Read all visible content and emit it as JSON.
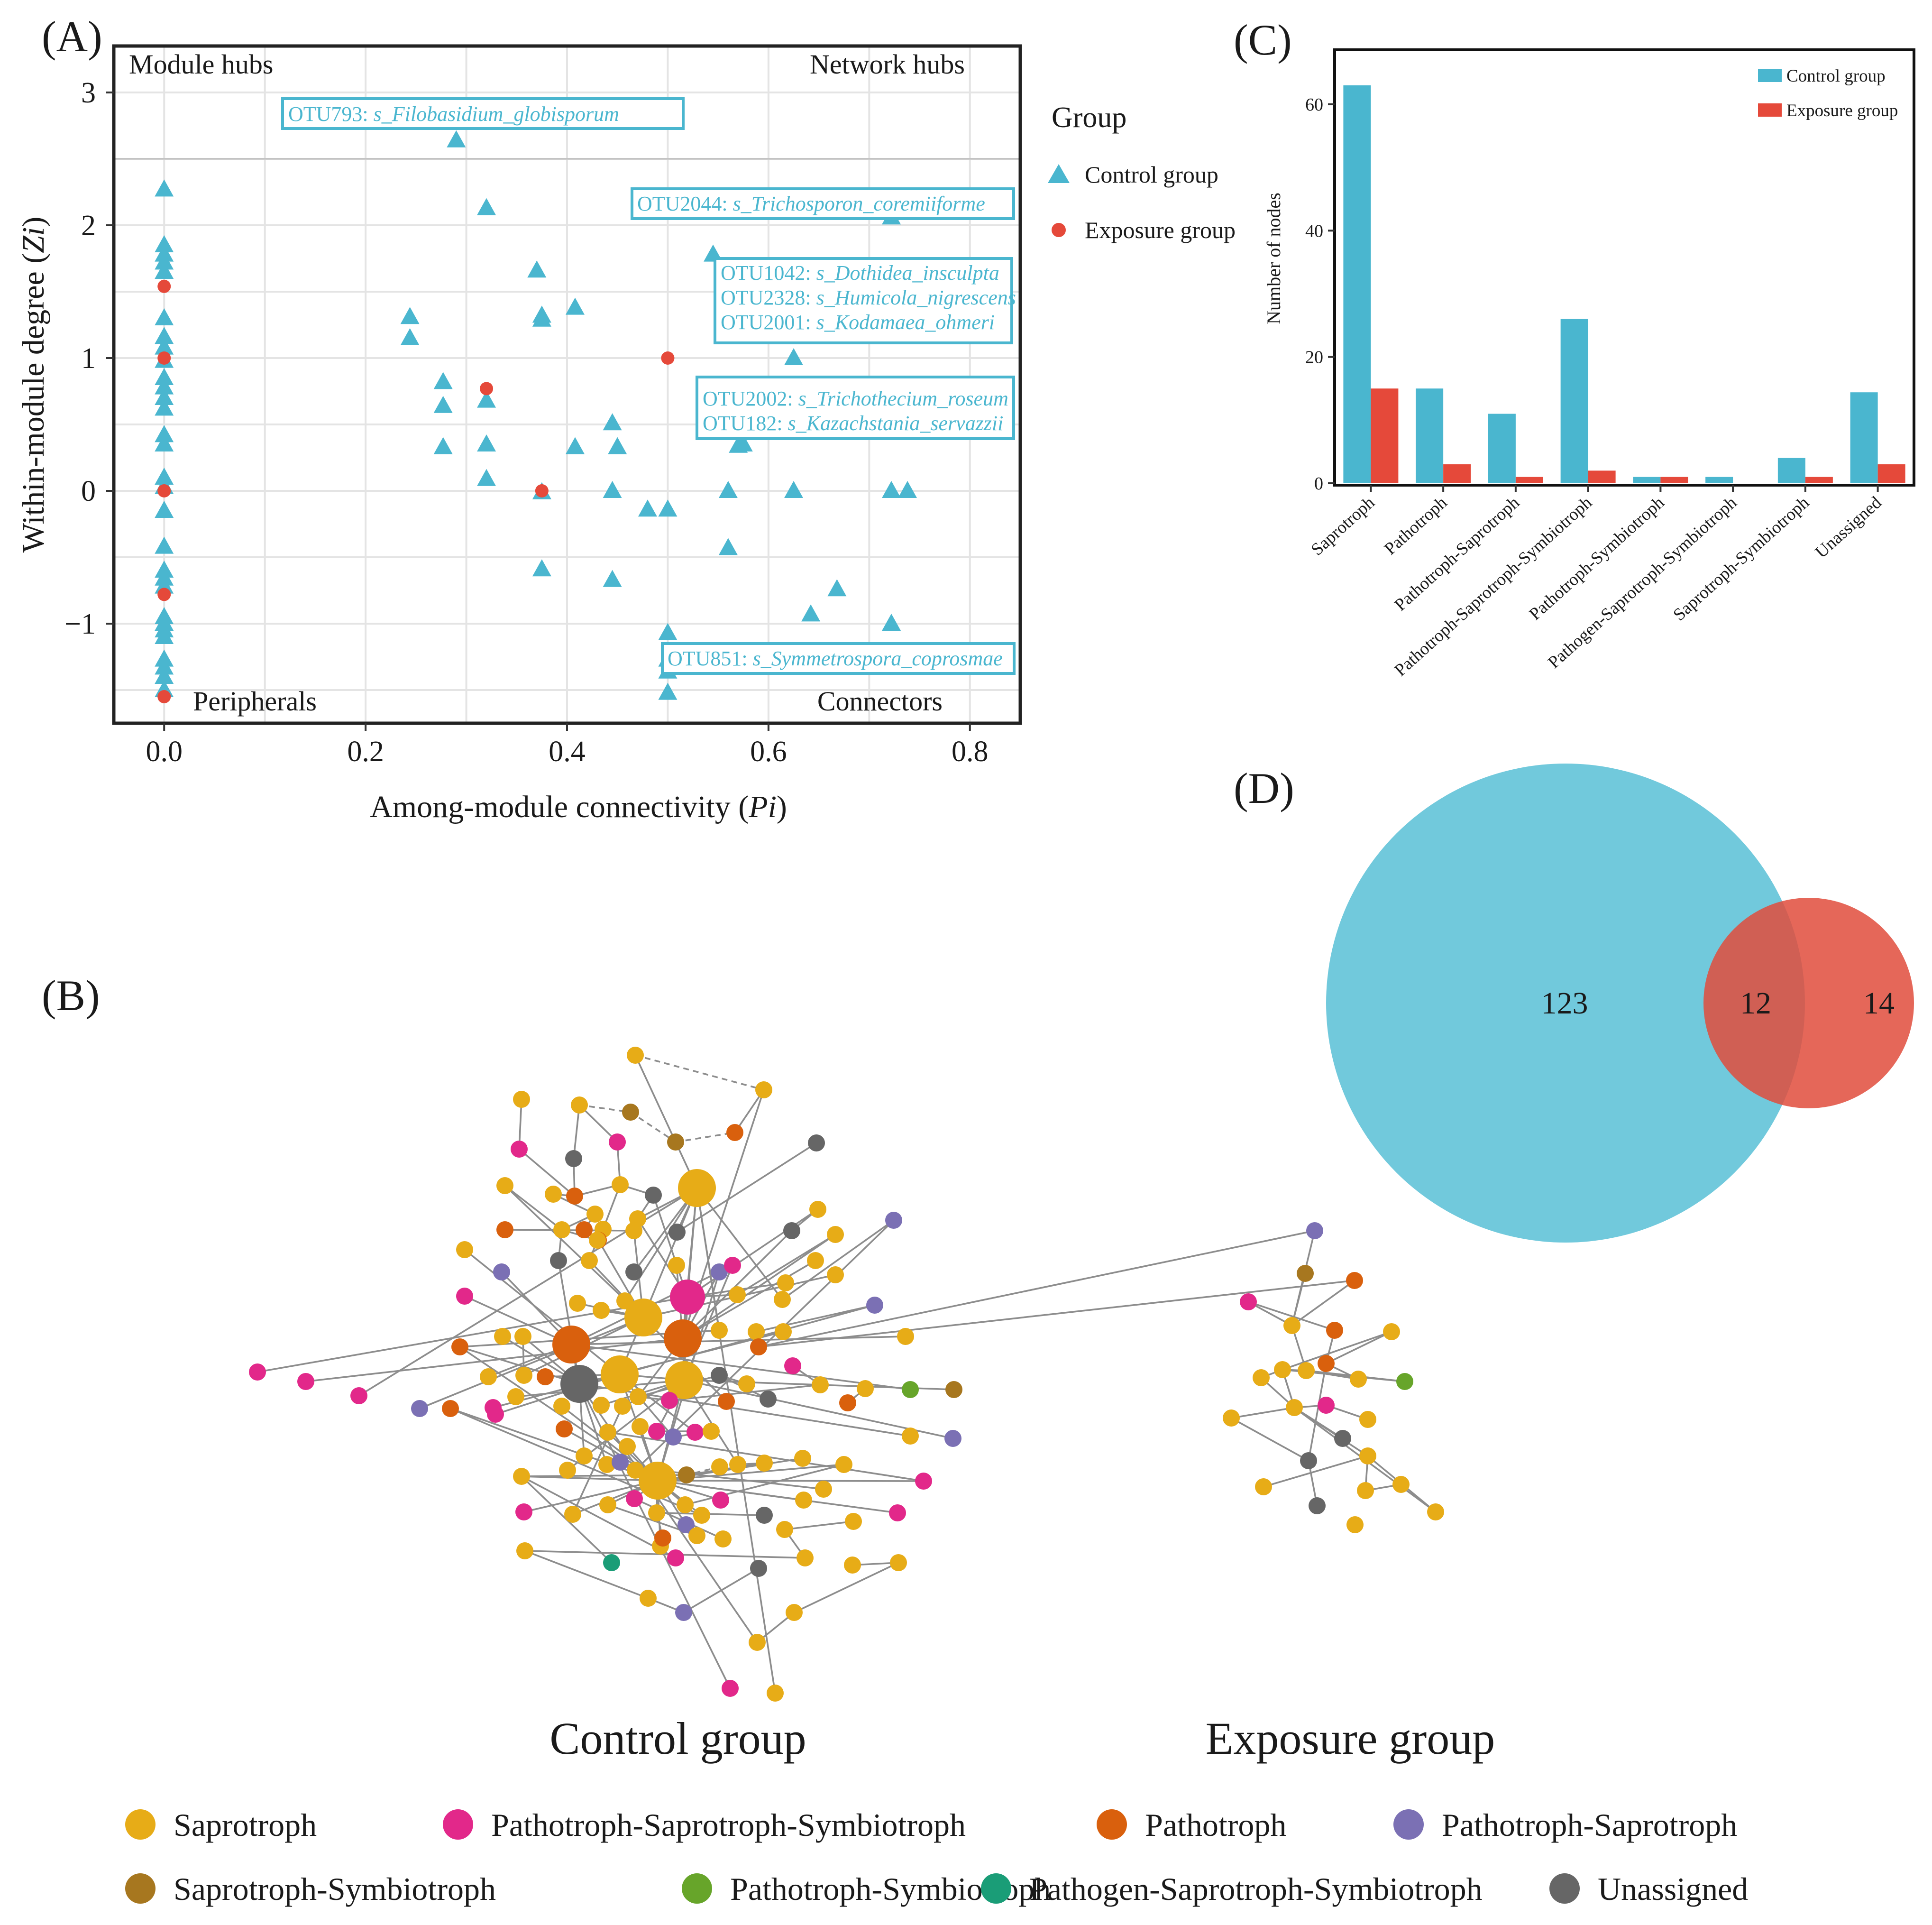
{
  "colors": {
    "control": "#4ab6cf",
    "exposure": "#e5493a",
    "Saprotroph": "#e7ac17",
    "Pathotroph-Saprotroph-Symbiotroph": "#e2288a",
    "Pathotroph": "#d9600d",
    "Pathotroph-Saprotroph": "#7b70b4",
    "Saprotroph-Symbiotroph": "#a7771f",
    "Pathotroph-Symbiotroph": "#67a52a",
    "Pathogen-Saprotroph-Symbiotroph": "#1a9d77",
    "Unassigned": "#666666"
  },
  "panels": {
    "a": "(A)",
    "b": "(B)",
    "c": "(C)",
    "d": "(D)"
  },
  "chart_data": [
    {
      "id": "zipi",
      "type": "scatter",
      "xlabel_main": "Among-module connectivity (",
      "xlabel_ital": "Pi",
      "xlabel_end": ")",
      "ylabel_main": "Within-module degree (",
      "ylabel_ital": "Zi",
      "ylabel_end": ")",
      "xlim": [
        -0.05,
        0.85
      ],
      "ylim": [
        -1.75,
        3.35
      ],
      "xticks": [
        0.0,
        0.2,
        0.4,
        0.6,
        0.8
      ],
      "xtick_labels": [
        "0.0",
        "0.2",
        "0.4",
        "0.6",
        "0.8"
      ],
      "yticks": [
        -1,
        0,
        1,
        2,
        3
      ],
      "ytick_labels": [
        "−1",
        "0",
        "1",
        "2",
        "3"
      ],
      "zi_threshold": 2.5,
      "pi_threshold": 0.62,
      "quadrants": {
        "module_hubs": "Module hubs",
        "network_hubs": "Network hubs",
        "peripherals": "Peripherals",
        "connectors": "Connectors"
      },
      "legend_title": "Group",
      "series": [
        {
          "name": "Control group",
          "marker": "triangle",
          "points": [
            [
              0,
              2.27
            ],
            [
              0,
              1.85
            ],
            [
              0,
              1.78
            ],
            [
              0,
              1.72
            ],
            [
              0,
              1.65
            ],
            [
              0,
              1.3
            ],
            [
              0,
              1.16
            ],
            [
              0,
              1.08
            ],
            [
              0,
              0.98
            ],
            [
              0,
              0.85
            ],
            [
              0,
              0.78
            ],
            [
              0,
              0.7
            ],
            [
              0,
              0.62
            ],
            [
              0,
              0.42
            ],
            [
              0,
              0.35
            ],
            [
              0,
              0.1
            ],
            [
              0,
              0.03
            ],
            [
              0,
              -0.15
            ],
            [
              0,
              -0.42
            ],
            [
              0,
              -0.6
            ],
            [
              0,
              -0.66
            ],
            [
              0,
              -0.72
            ],
            [
              0,
              -0.95
            ],
            [
              0,
              -1.0
            ],
            [
              0,
              -1.05
            ],
            [
              0,
              -1.1
            ],
            [
              0,
              -1.27
            ],
            [
              0,
              -1.33
            ],
            [
              0,
              -1.4
            ],
            [
              0,
              -1.5
            ],
            [
              0.29,
              2.64
            ],
            [
              0.32,
              2.13
            ],
            [
              0.244,
              1.31
            ],
            [
              0.244,
              1.15
            ],
            [
              0.277,
              0.82
            ],
            [
              0.277,
              0.64
            ],
            [
              0.277,
              0.33
            ],
            [
              0.32,
              0.68
            ],
            [
              0.32,
              0.35
            ],
            [
              0.32,
              0.09
            ],
            [
              0.37,
              1.66
            ],
            [
              0.375,
              1.32
            ],
            [
              0.375,
              1.29
            ],
            [
              0.408,
              1.38
            ],
            [
              0.408,
              0.33
            ],
            [
              0.375,
              -0.01
            ],
            [
              0.375,
              -0.59
            ],
            [
              0.445,
              0.51
            ],
            [
              0.45,
              0.33
            ],
            [
              0.445,
              0.0
            ],
            [
              0.445,
              -0.67
            ],
            [
              0.48,
              -0.14
            ],
            [
              0.5,
              -0.14
            ],
            [
              0.5,
              -1.07
            ],
            [
              0.5,
              -1.27
            ],
            [
              0.5,
              -1.36
            ],
            [
              0.5,
              -1.52
            ],
            [
              0.545,
              1.78
            ],
            [
              0.56,
              0.0
            ],
            [
              0.56,
              -0.43
            ],
            [
              0.57,
              0.34
            ],
            [
              0.575,
              0.35
            ],
            [
              0.625,
              1.0
            ],
            [
              0.625,
              0.0
            ],
            [
              0.642,
              -0.93
            ],
            [
              0.668,
              -0.74
            ],
            [
              0.722,
              2.06
            ],
            [
              0.722,
              0.0
            ],
            [
              0.738,
              0.0
            ],
            [
              0.722,
              -1.0
            ]
          ]
        },
        {
          "name": "Exposure group",
          "marker": "circle",
          "points": [
            [
              0,
              1.54
            ],
            [
              0,
              1.0
            ],
            [
              0,
              0.0
            ],
            [
              0,
              -0.78
            ],
            [
              0,
              -1.55
            ],
            [
              0.32,
              0.77
            ],
            [
              0.375,
              0.0
            ],
            [
              0.5,
              1.0
            ]
          ]
        }
      ],
      "annotations": [
        {
          "otu": "OTU793: ",
          "sp": "s_Filobasidium_globisporum"
        },
        {
          "otu": "OTU2044: ",
          "sp": "s_Trichosporon_coremiiforme"
        },
        {
          "otu": "OTU1042: ",
          "sp": "s_Dothidea_insculpta"
        },
        {
          "otu": "OTU2328: ",
          "sp": "s_Humicola_nigrescens"
        },
        {
          "otu": "OTU2001: ",
          "sp": "s_Kodamaea_ohmeri"
        },
        {
          "otu": "OTU2002: ",
          "sp": "s_Trichothecium_roseum"
        },
        {
          "otu": "OTU182: ",
          "sp": "s_Kazachstania_servazzii"
        },
        {
          "otu": "OTU851: ",
          "sp": "s_Symmetrospora_coprosmae"
        }
      ]
    },
    {
      "id": "bars",
      "type": "bar",
      "ylabel": "Number of nodes",
      "ylim": [
        0,
        66
      ],
      "yticks": [
        0,
        20,
        40,
        60
      ],
      "categories": [
        "Saprotroph",
        "Pathotroph",
        "Pathotroph-Saprotroph",
        "Pathotroph-Saprotroph-Symbiotroph",
        "Pathotroph-Symbiotroph",
        "Pathogen-Saprotroph-Symbiotroph",
        "Saprotroph-Symbiotroph",
        "Unassigned"
      ],
      "series": [
        {
          "name": "Control group",
          "values": [
            63,
            15,
            11,
            26,
            1,
            1,
            4,
            14.4
          ]
        },
        {
          "name": "Exposure group",
          "values": [
            15,
            3,
            1,
            2,
            1,
            0,
            1,
            3
          ]
        }
      ]
    },
    {
      "id": "venn",
      "type": "venn",
      "control_only": "123",
      "shared": "12",
      "exposure_only": "14"
    }
  ],
  "network": {
    "control_label": "Control group",
    "exposure_label": "Exposure group",
    "legend": [
      "Saprotroph",
      "Pathotroph-Saprotroph-Symbiotroph",
      "Pathotroph",
      "Pathotroph-Saprotroph",
      "Saprotroph-Symbiotroph",
      "Pathotroph-Symbiotroph",
      "Pathogen-Saprotroph-Symbiotroph",
      "Unassigned"
    ]
  }
}
